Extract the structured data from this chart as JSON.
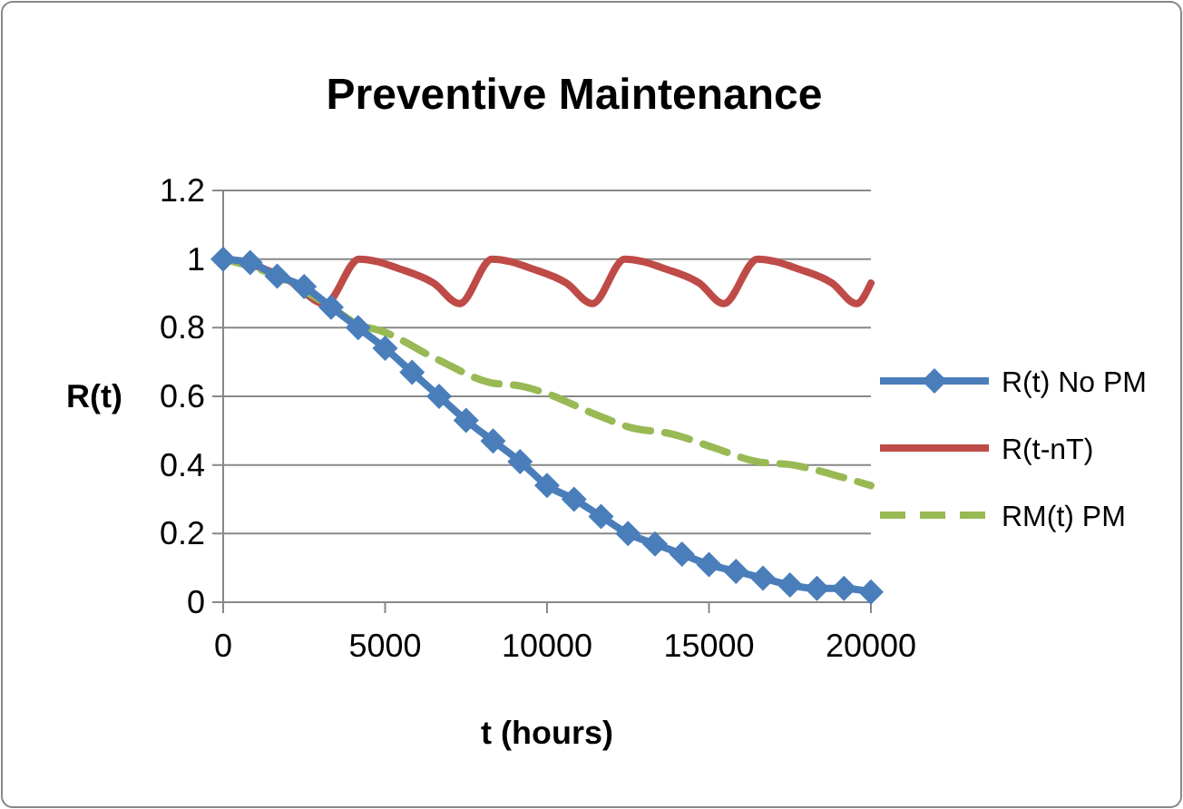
{
  "chart_data": {
    "type": "line",
    "title": "Preventive Maintenance",
    "xlabel": "t (hours)",
    "ylabel": "R(t)",
    "xlim": [
      0,
      20000
    ],
    "xticks": [
      0,
      5000,
      10000,
      15000,
      20000
    ],
    "ylim": [
      0,
      1.2
    ],
    "yticks": [
      0,
      {
        "value": 0.2,
        "label": "0.2"
      },
      {
        "value": 0.4,
        "label": "0.4"
      },
      {
        "value": 0.6,
        "label": "0.6"
      },
      {
        "value": 0.8,
        "label": "0.8"
      },
      1,
      {
        "value": 1.2,
        "label": "1.2"
      }
    ],
    "grid": "y",
    "legend": "right",
    "series": [
      {
        "name": "R(t) No PM",
        "color": "#4a7ebb",
        "marker": "diamond",
        "line_style": "solid",
        "x": [
          0,
          833,
          1667,
          2500,
          3333,
          4167,
          5000,
          5833,
          6667,
          7500,
          8333,
          9167,
          10000,
          10833,
          11667,
          12500,
          13333,
          14167,
          15000,
          15833,
          16667,
          17500,
          18333,
          19167,
          20000
        ],
        "values": [
          1.0,
          0.99,
          0.95,
          0.92,
          0.86,
          0.8,
          0.74,
          0.67,
          0.6,
          0.53,
          0.47,
          0.41,
          0.34,
          0.3,
          0.25,
          0.2,
          0.17,
          0.14,
          0.11,
          0.09,
          0.07,
          0.05,
          0.04,
          0.04,
          0.03
        ]
      },
      {
        "name": "R(t-nT)",
        "color": "#be4b48",
        "marker": "none",
        "line_style": "solid",
        "x": [
          0,
          1000,
          2000,
          3150,
          4200,
          5500,
          6500,
          7300,
          8300,
          9600,
          10600,
          11400,
          12400,
          13700,
          14700,
          15450,
          16500,
          17800,
          18800,
          19550,
          20000
        ],
        "values": [
          1.0,
          0.98,
          0.94,
          0.87,
          1.0,
          0.97,
          0.93,
          0.87,
          1.0,
          0.97,
          0.93,
          0.87,
          1.0,
          0.97,
          0.93,
          0.87,
          1.0,
          0.97,
          0.93,
          0.87,
          0.93
        ]
      },
      {
        "name": "RM(t) PM",
        "color": "#98b954",
        "marker": "none",
        "line_style": "dashed",
        "x": [
          0,
          1667,
          3333,
          4150,
          4900,
          6570,
          8250,
          9190,
          9940,
          11430,
          12550,
          13860,
          15160,
          16470,
          17590,
          18900,
          20000
        ],
        "values": [
          1.0,
          0.95,
          0.86,
          0.81,
          0.79,
          0.71,
          0.64,
          0.63,
          0.61,
          0.55,
          0.51,
          0.49,
          0.45,
          0.41,
          0.4,
          0.37,
          0.34
        ]
      }
    ]
  }
}
